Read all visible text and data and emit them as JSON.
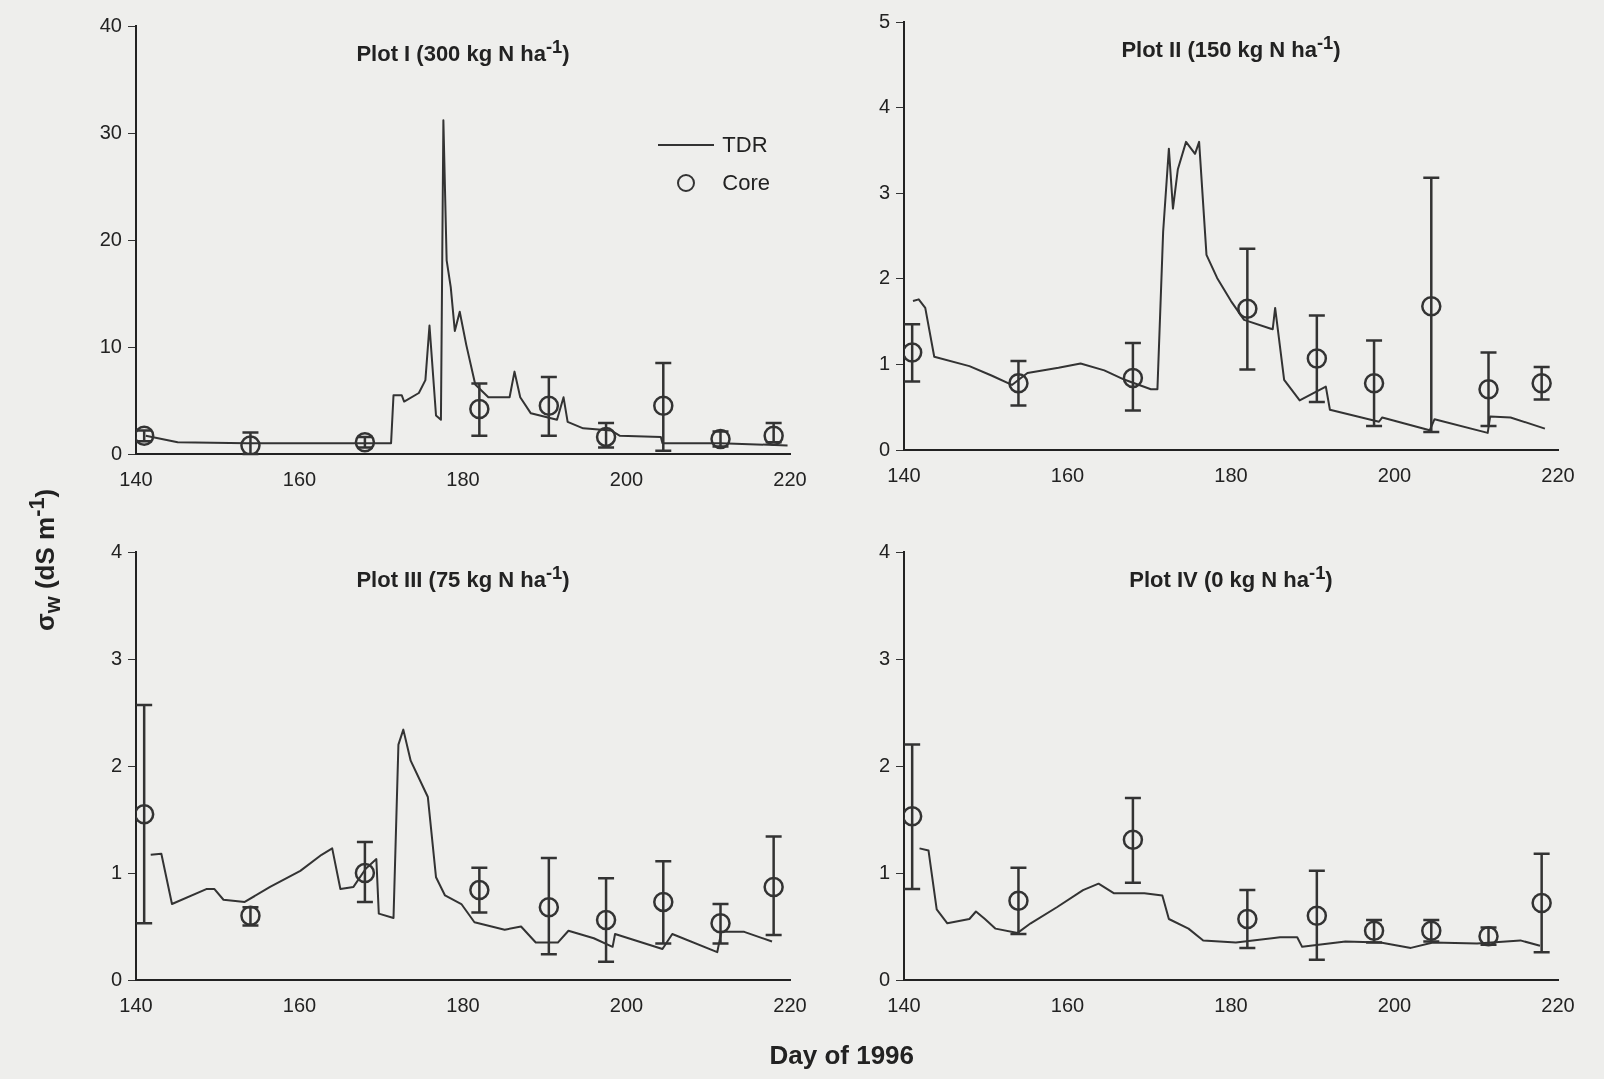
{
  "chart_data": [
    {
      "type": "line",
      "title": "Plot I (300 kg N ha$^{-1}$)",
      "ylabel": "σ$_{w}$ (dS m$^{-1}$)",
      "xlim": [
        140,
        220
      ],
      "xticks": [
        140,
        160,
        180,
        200,
        220
      ],
      "ylim": [
        0,
        40
      ],
      "yticks": [
        0,
        10,
        20,
        30,
        40
      ],
      "legend": "top right",
      "series": [
        {
          "name": "TDR",
          "type": "line",
          "marker": "none",
          "color": "#333333",
          "x": [
            141.2,
            145.1,
            153.6,
            164.1,
            171.2,
            171.5,
            172.5,
            172.8,
            174.6,
            175.4,
            175.9,
            176.7,
            177.3,
            177.6,
            178.0,
            178.5,
            179.0,
            179.6,
            180.4,
            181.5,
            183.1,
            185.7,
            186.3,
            187.0,
            188.3,
            191.5,
            192.3,
            192.8,
            194.7,
            198.1,
            199.2,
            204.2,
            204.4,
            211.5,
            219.7
          ],
          "values": [
            1.7,
            1.1,
            1.0,
            1.0,
            1.0,
            5.5,
            5.5,
            4.9,
            5.7,
            6.9,
            12.0,
            3.6,
            3.2,
            31.2,
            18.1,
            15.6,
            11.5,
            13.3,
            10.2,
            6.5,
            5.3,
            5.3,
            7.7,
            5.3,
            3.8,
            3.2,
            5.3,
            3.0,
            2.4,
            2.2,
            1.7,
            1.6,
            1.0,
            1.0,
            0.8
          ]
        },
        {
          "name": "Core",
          "type": "scatter",
          "marker": "circle",
          "color": "#333333",
          "x": [
            141,
            154,
            168,
            182,
            190.5,
            197.5,
            204.5,
            211.5,
            218
          ],
          "values": [
            1.7,
            0.8,
            1.1,
            4.2,
            4.5,
            1.6,
            4.5,
            1.4,
            1.7
          ],
          "errors": [
            [
              1.2,
              2.2
            ],
            [
              0,
              2
            ],
            [
              0.6,
              1.6
            ],
            [
              1.7,
              6.6
            ],
            [
              1.7,
              7.2
            ],
            [
              0.6,
              2.9
            ],
            [
              0.3,
              8.5
            ],
            [
              0.7,
              2.1
            ],
            [
              1.1,
              2.9
            ]
          ]
        }
      ]
    },
    {
      "type": "line",
      "title": "Plot II (150 kg N ha$^{-1}$)",
      "xlim": [
        140,
        220
      ],
      "xticks": [
        140,
        160,
        180,
        200,
        220
      ],
      "ylim": [
        0,
        5
      ],
      "yticks": [
        0,
        1,
        2,
        3,
        4,
        5
      ],
      "series": [
        {
          "type": "line",
          "marker": "none",
          "color": "#333333",
          "x": [
            141.1,
            141.8,
            142.6,
            143.7,
            148.0,
            150.7,
            153.2,
            155.1,
            158.9,
            161.6,
            164.5,
            167.0,
            170.2,
            171.0,
            171.7,
            172.4,
            172.9,
            173.5,
            174.5,
            175.6,
            176.1,
            177.0,
            178.3,
            180.0,
            181.6,
            185.1,
            185.4,
            186.5,
            188.4,
            191.6,
            192.1,
            198.1,
            198.5,
            204.3,
            204.9,
            211.4,
            211.7,
            214.2,
            218.4
          ],
          "values": [
            1.74,
            1.76,
            1.66,
            1.09,
            0.98,
            0.87,
            0.76,
            0.9,
            0.96,
            1.01,
            0.93,
            0.82,
            0.71,
            0.71,
            2.55,
            3.52,
            2.82,
            3.28,
            3.6,
            3.46,
            3.6,
            2.28,
            2.01,
            1.74,
            1.52,
            1.41,
            1.66,
            0.82,
            0.58,
            0.74,
            0.47,
            0.33,
            0.38,
            0.23,
            0.36,
            0.2,
            0.39,
            0.38,
            0.25
          ]
        },
        {
          "type": "scatter",
          "marker": "circle",
          "color": "#333333",
          "x": [
            141,
            154,
            168,
            182,
            190.5,
            197.5,
            204.5,
            211.5,
            218
          ],
          "values": [
            1.14,
            0.78,
            0.84,
            1.65,
            1.07,
            0.78,
            1.68,
            0.71,
            0.78
          ],
          "errors": [
            [
              0.8,
              1.47
            ],
            [
              0.52,
              1.04
            ],
            [
              0.46,
              1.25
            ],
            [
              0.94,
              2.35
            ],
            [
              0.56,
              1.57
            ],
            [
              0.28,
              1.28
            ],
            [
              0.21,
              3.18
            ],
            [
              0.28,
              1.14
            ],
            [
              0.59,
              0.97
            ]
          ]
        }
      ]
    },
    {
      "type": "line",
      "title": "Plot III (75 kg N ha$^{-1}$)",
      "xlabel": "Day of 1996",
      "xlim": [
        140,
        220
      ],
      "xticks": [
        140,
        160,
        180,
        200,
        220
      ],
      "ylim": [
        0,
        4
      ],
      "yticks": [
        0,
        1,
        2,
        3,
        4
      ],
      "series": [
        {
          "type": "line",
          "marker": "none",
          "color": "#333333",
          "x": [
            141.8,
            143.1,
            144.4,
            148.6,
            149.6,
            150.7,
            153.3,
            156.4,
            160.1,
            162.7,
            164.0,
            165.0,
            166.6,
            168.1,
            169.4,
            169.7,
            171.5,
            172.1,
            172.7,
            173.6,
            175.7,
            176.7,
            177.8,
            179.8,
            181.4,
            185.1,
            187.1,
            188.9,
            191.6,
            192.9,
            196.0,
            198.3,
            198.6,
            204.4,
            205.6,
            211.1,
            211.6,
            214.4,
            217.8
          ],
          "values": [
            1.17,
            1.18,
            0.71,
            0.85,
            0.85,
            0.75,
            0.73,
            0.87,
            1.02,
            1.17,
            1.23,
            0.85,
            0.87,
            1.04,
            1.13,
            0.62,
            0.58,
            2.2,
            2.34,
            2.05,
            1.71,
            0.96,
            0.79,
            0.71,
            0.54,
            0.47,
            0.5,
            0.35,
            0.35,
            0.46,
            0.39,
            0.31,
            0.43,
            0.29,
            0.43,
            0.26,
            0.45,
            0.45,
            0.36
          ]
        },
        {
          "type": "scatter",
          "marker": "circle",
          "color": "#333333",
          "x": [
            141,
            154,
            168,
            182,
            190.5,
            197.5,
            204.5,
            211.5,
            218
          ],
          "values": [
            1.55,
            0.6,
            1.0,
            0.84,
            0.68,
            0.56,
            0.73,
            0.53,
            0.87
          ],
          "errors": [
            [
              0.53,
              2.57
            ],
            [
              0.51,
              0.68
            ],
            [
              0.73,
              1.29
            ],
            [
              0.63,
              1.05
            ],
            [
              0.24,
              1.14
            ],
            [
              0.17,
              0.95
            ],
            [
              0.34,
              1.11
            ],
            [
              0.34,
              0.71
            ],
            [
              0.42,
              1.34
            ]
          ]
        }
      ]
    },
    {
      "type": "line",
      "title": "Plot IV (0 kg N ha$^{-1}$)",
      "xlim": [
        140,
        220
      ],
      "xticks": [
        140,
        160,
        180,
        200,
        220
      ],
      "ylim": [
        0,
        4
      ],
      "yticks": [
        0,
        1,
        2,
        3,
        4
      ],
      "series": [
        {
          "type": "line",
          "marker": "none",
          "color": "#333333",
          "x": [
            141.9,
            143.0,
            144.0,
            145.3,
            148.0,
            148.8,
            149.9,
            151.2,
            153.9,
            155.5,
            158.7,
            161.9,
            163.8,
            165.7,
            169.4,
            171.6,
            172.4,
            174.8,
            176.6,
            180.6,
            186.0,
            188.1,
            188.7,
            194.0,
            198.3,
            202.0,
            204.7,
            210.1,
            215.4,
            217.8
          ],
          "values": [
            1.23,
            1.21,
            0.66,
            0.53,
            0.57,
            0.64,
            0.57,
            0.48,
            0.44,
            0.53,
            0.68,
            0.84,
            0.9,
            0.81,
            0.81,
            0.79,
            0.57,
            0.48,
            0.37,
            0.35,
            0.4,
            0.4,
            0.31,
            0.36,
            0.35,
            0.3,
            0.35,
            0.34,
            0.37,
            0.32
          ]
        },
        {
          "type": "scatter",
          "marker": "circle",
          "color": "#333333",
          "x": [
            141,
            154,
            168,
            182,
            190.5,
            197.5,
            204.5,
            211.5,
            218
          ],
          "values": [
            1.53,
            0.74,
            1.31,
            0.57,
            0.6,
            0.46,
            0.46,
            0.41,
            0.72
          ],
          "errors": [
            [
              0.85,
              2.2
            ],
            [
              0.43,
              1.05
            ],
            [
              0.91,
              1.7
            ],
            [
              0.3,
              0.84
            ],
            [
              0.19,
              1.02
            ],
            [
              0.35,
              0.56
            ],
            [
              0.36,
              0.56
            ],
            [
              0.33,
              0.49
            ],
            [
              0.26,
              1.18
            ]
          ]
        }
      ]
    }
  ]
}
